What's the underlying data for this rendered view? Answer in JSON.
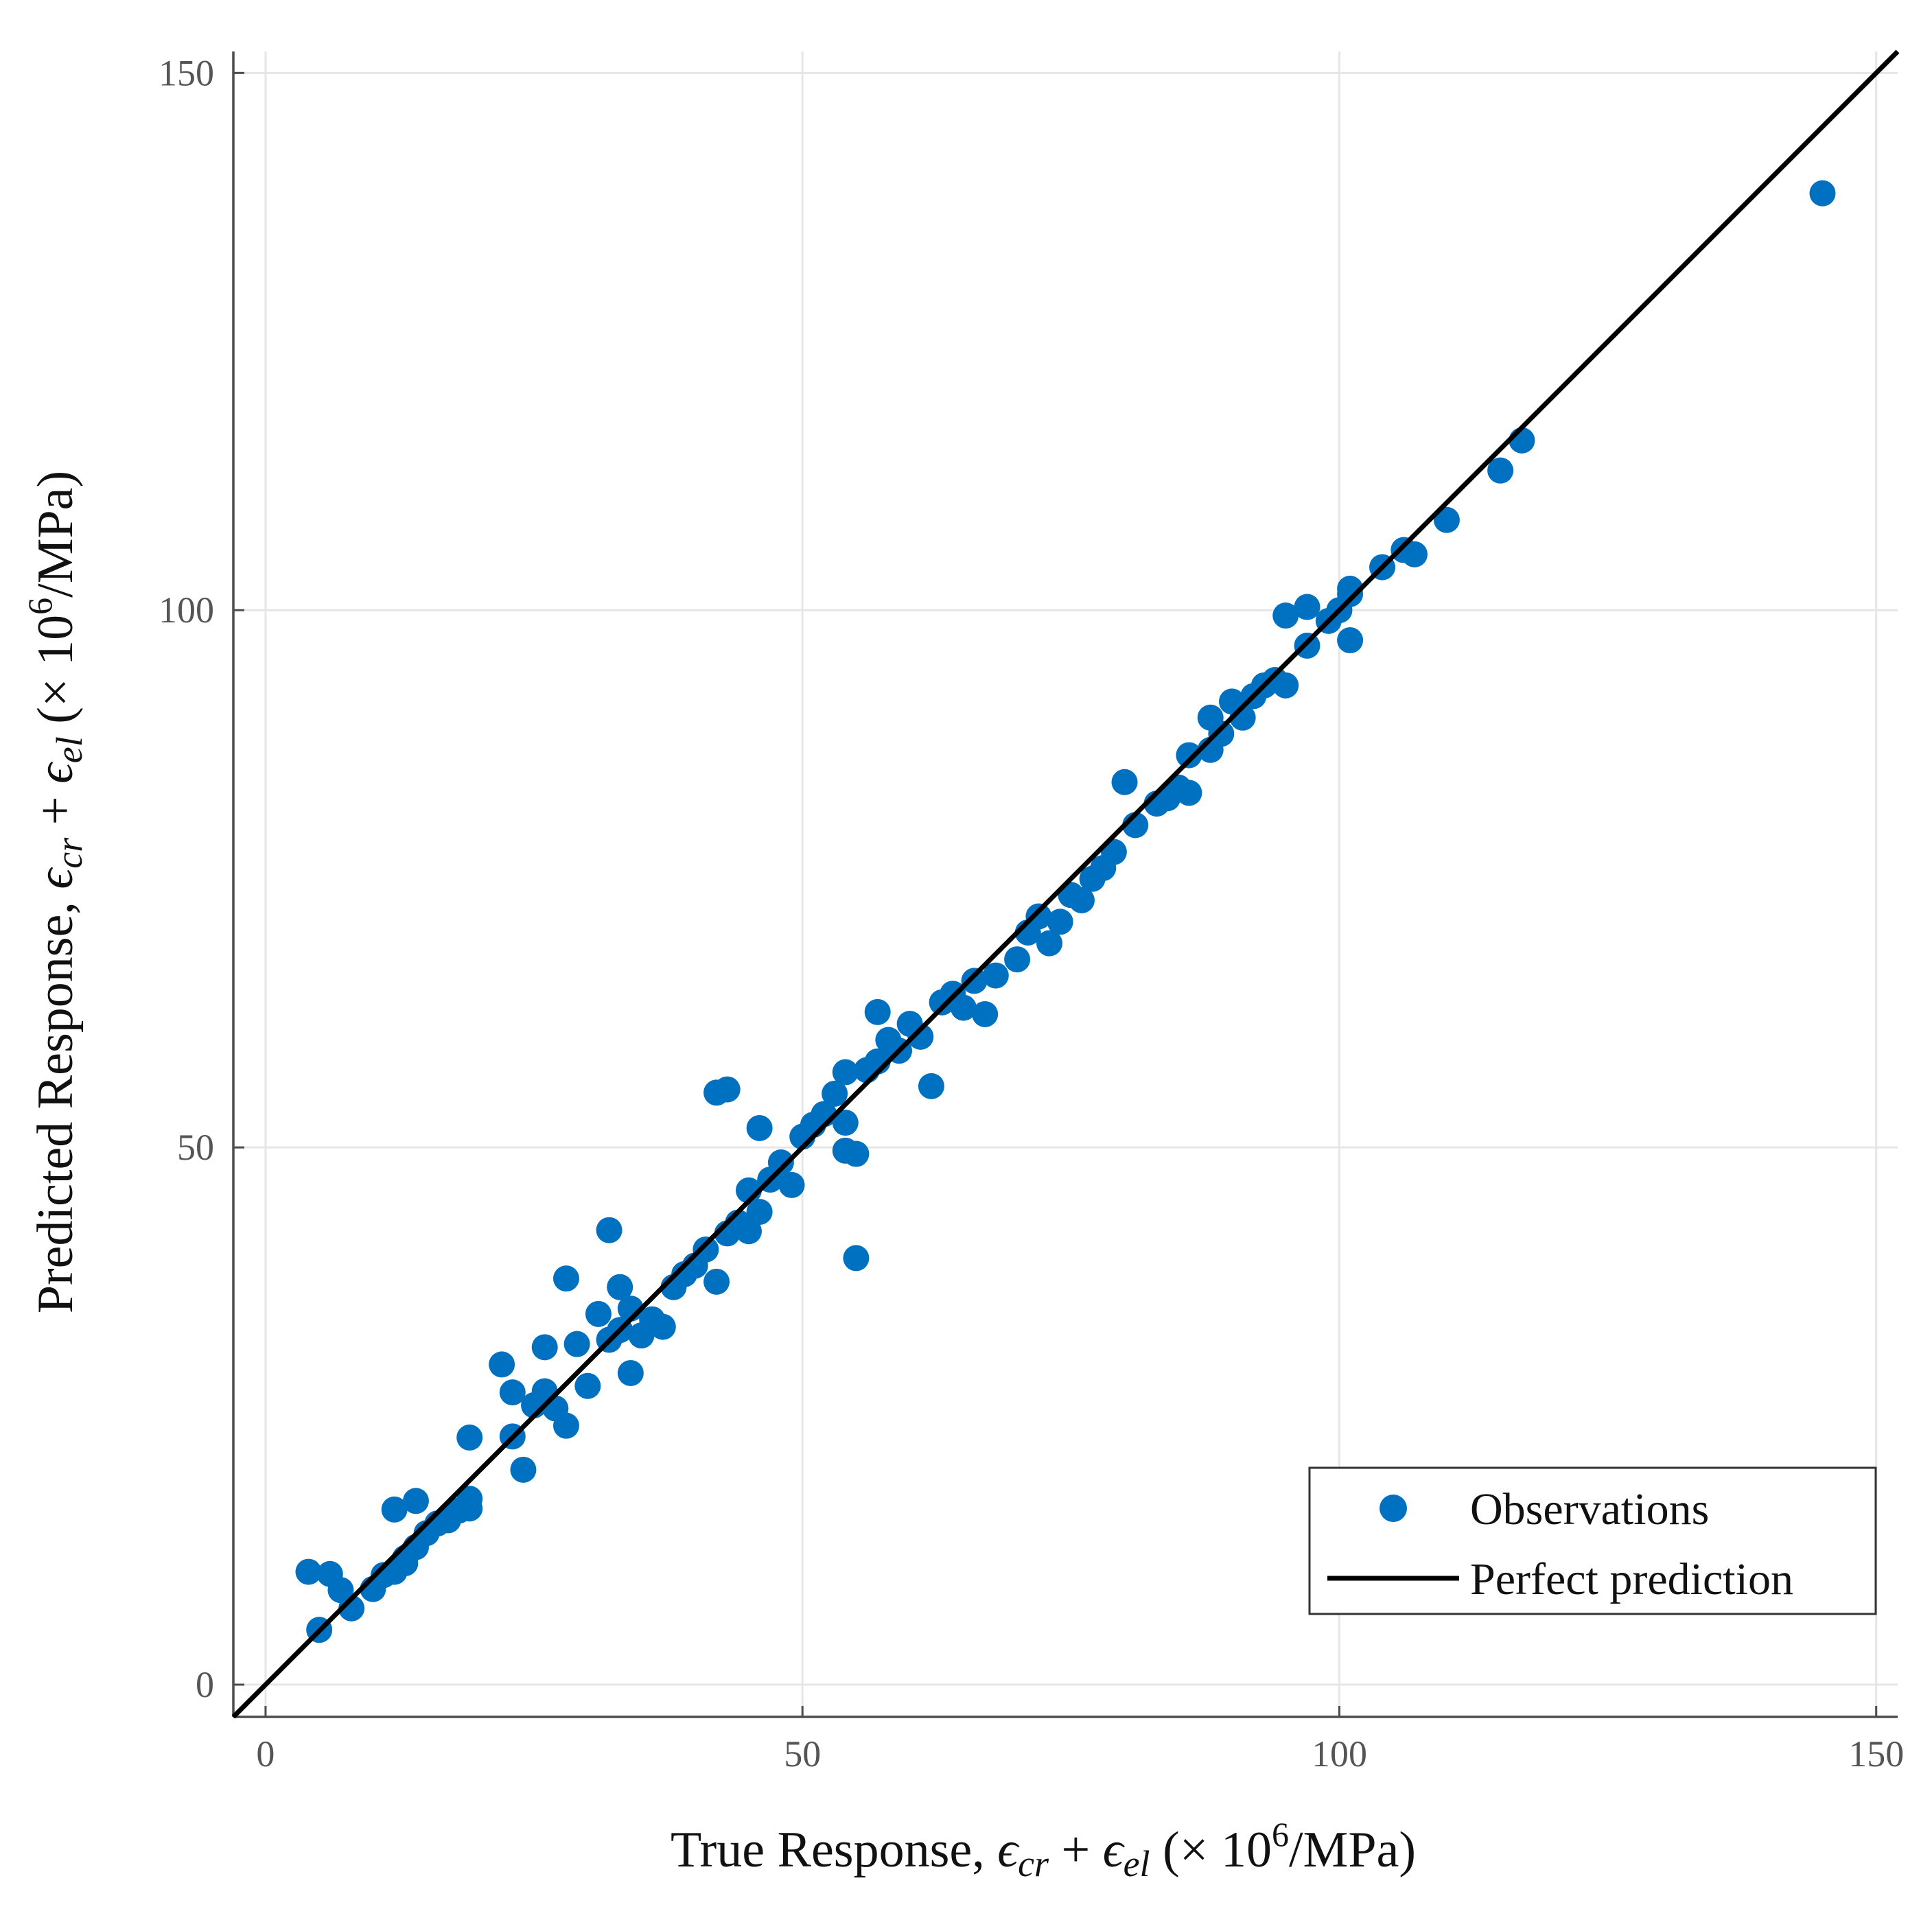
{
  "chart_data": {
    "type": "scatter",
    "title": "",
    "xlabel": {
      "prefix": "True Response, ",
      "term1": "ϵ",
      "term1_sub": "cr",
      "plus": " + ",
      "term2": "ϵ",
      "term2_sub": "el",
      "unit_open": " (× 10",
      "unit_exp": "6",
      "unit_close": "/MPa)"
    },
    "ylabel": {
      "prefix": "Predicted Response, ",
      "term1": "ϵ",
      "term1_sub": "cr",
      "plus": " + ",
      "term2": "ϵ",
      "term2_sub": "el",
      "unit_open": " (× 10",
      "unit_exp": "6",
      "unit_close": "/MPa)"
    },
    "xlim": [
      -3,
      152
    ],
    "ylim": [
      -3,
      152
    ],
    "xticks": [
      0,
      50,
      100,
      150
    ],
    "yticks": [
      0,
      50,
      100,
      150
    ],
    "xtick_labels": [
      "0",
      "50",
      "100",
      "150"
    ],
    "ytick_labels": [
      "0",
      "50",
      "100",
      "150"
    ],
    "grid": true,
    "legend_position": "bottom-right",
    "colors": {
      "points": "#0070c0",
      "line": "#000000"
    },
    "series": [
      {
        "name": "Observations",
        "kind": "scatter",
        "points": [
          [
            4,
            10.5
          ],
          [
            6,
            10.3
          ],
          [
            5,
            5.1
          ],
          [
            7,
            8.8
          ],
          [
            8,
            7.1
          ],
          [
            10,
            8.9
          ],
          [
            11,
            10.2
          ],
          [
            12,
            10.5
          ],
          [
            13,
            11.8
          ],
          [
            14,
            12.8
          ],
          [
            12,
            16.3
          ],
          [
            14,
            17.1
          ],
          [
            13,
            11.3
          ],
          [
            15,
            14.1
          ],
          [
            16,
            15.0
          ],
          [
            17,
            15.3
          ],
          [
            18,
            16.2
          ],
          [
            19,
            17.3
          ],
          [
            19,
            16.4
          ],
          [
            19,
            23.0
          ],
          [
            22,
            29.8
          ],
          [
            23,
            23.1
          ],
          [
            23,
            27.2
          ],
          [
            24,
            20.0
          ],
          [
            25,
            26.0
          ],
          [
            26,
            31.4
          ],
          [
            26,
            27.3
          ],
          [
            27,
            25.7
          ],
          [
            28,
            37.8
          ],
          [
            28,
            24.1
          ],
          [
            29,
            31.7
          ],
          [
            30,
            27.8
          ],
          [
            31,
            34.5
          ],
          [
            32,
            42.3
          ],
          [
            33,
            37.0
          ],
          [
            32,
            32.1
          ],
          [
            34,
            29.0
          ],
          [
            35,
            32.5
          ],
          [
            33,
            33.0
          ],
          [
            34,
            35.0
          ],
          [
            36,
            34.0
          ],
          [
            37,
            33.3
          ],
          [
            38,
            37.0
          ],
          [
            39,
            38.2
          ],
          [
            40,
            39.0
          ],
          [
            41,
            40.5
          ],
          [
            42,
            37.5
          ],
          [
            43,
            42.0
          ],
          [
            44,
            43.0
          ],
          [
            45,
            42.2
          ],
          [
            46,
            44.0
          ],
          [
            47,
            47.0
          ],
          [
            45,
            46.0
          ],
          [
            42,
            55.1
          ],
          [
            43,
            55.4
          ],
          [
            46,
            51.8
          ],
          [
            48,
            48.6
          ],
          [
            49,
            46.5
          ],
          [
            50,
            51.0
          ],
          [
            51,
            52.1
          ],
          [
            52,
            53.1
          ],
          [
            53,
            55.0
          ],
          [
            54,
            49.7
          ],
          [
            54,
            52.3
          ],
          [
            55,
            49.4
          ],
          [
            54,
            57.0
          ],
          [
            55,
            39.7
          ],
          [
            56,
            57.2
          ],
          [
            57,
            58.0
          ],
          [
            58,
            60.0
          ],
          [
            59,
            59.0
          ],
          [
            60,
            61.5
          ],
          [
            61,
            60.3
          ],
          [
            57,
            62.6
          ],
          [
            62,
            55.7
          ],
          [
            63,
            63.5
          ],
          [
            64,
            64.3
          ],
          [
            65,
            63.0
          ],
          [
            66,
            65.5
          ],
          [
            67,
            62.4
          ],
          [
            68,
            66.0
          ],
          [
            70,
            67.5
          ],
          [
            71,
            70.0
          ],
          [
            72,
            71.5
          ],
          [
            73,
            69.0
          ],
          [
            74,
            71.0
          ],
          [
            75,
            73.5
          ],
          [
            76,
            73.0
          ],
          [
            77,
            75.0
          ],
          [
            78,
            76.0
          ],
          [
            79,
            77.5
          ],
          [
            80,
            84.0
          ],
          [
            81,
            80.0
          ],
          [
            83,
            82.0
          ],
          [
            84,
            82.5
          ],
          [
            85,
            83.5
          ],
          [
            86,
            83.0
          ],
          [
            86,
            86.5
          ],
          [
            88,
            87.0
          ],
          [
            88,
            90.0
          ],
          [
            89,
            88.5
          ],
          [
            90,
            91.5
          ],
          [
            91,
            90.0
          ],
          [
            92,
            92.0
          ],
          [
            93,
            93.0
          ],
          [
            94,
            93.5
          ],
          [
            95,
            99.5
          ],
          [
            95,
            93.0
          ],
          [
            97,
            100.3
          ],
          [
            97,
            96.7
          ],
          [
            99,
            99.0
          ],
          [
            100,
            100.0
          ],
          [
            101,
            101.5
          ],
          [
            101,
            97.2
          ],
          [
            101,
            102.0
          ],
          [
            104,
            104.0
          ],
          [
            106,
            105.6
          ],
          [
            107,
            105.2
          ],
          [
            110,
            108.4
          ],
          [
            115,
            113.0
          ],
          [
            117,
            115.8
          ],
          [
            145,
            138.8
          ]
        ]
      },
      {
        "name": "Perfect prediction",
        "kind": "line",
        "points": [
          [
            -3,
            -3
          ],
          [
            152,
            152
          ]
        ]
      }
    ]
  }
}
